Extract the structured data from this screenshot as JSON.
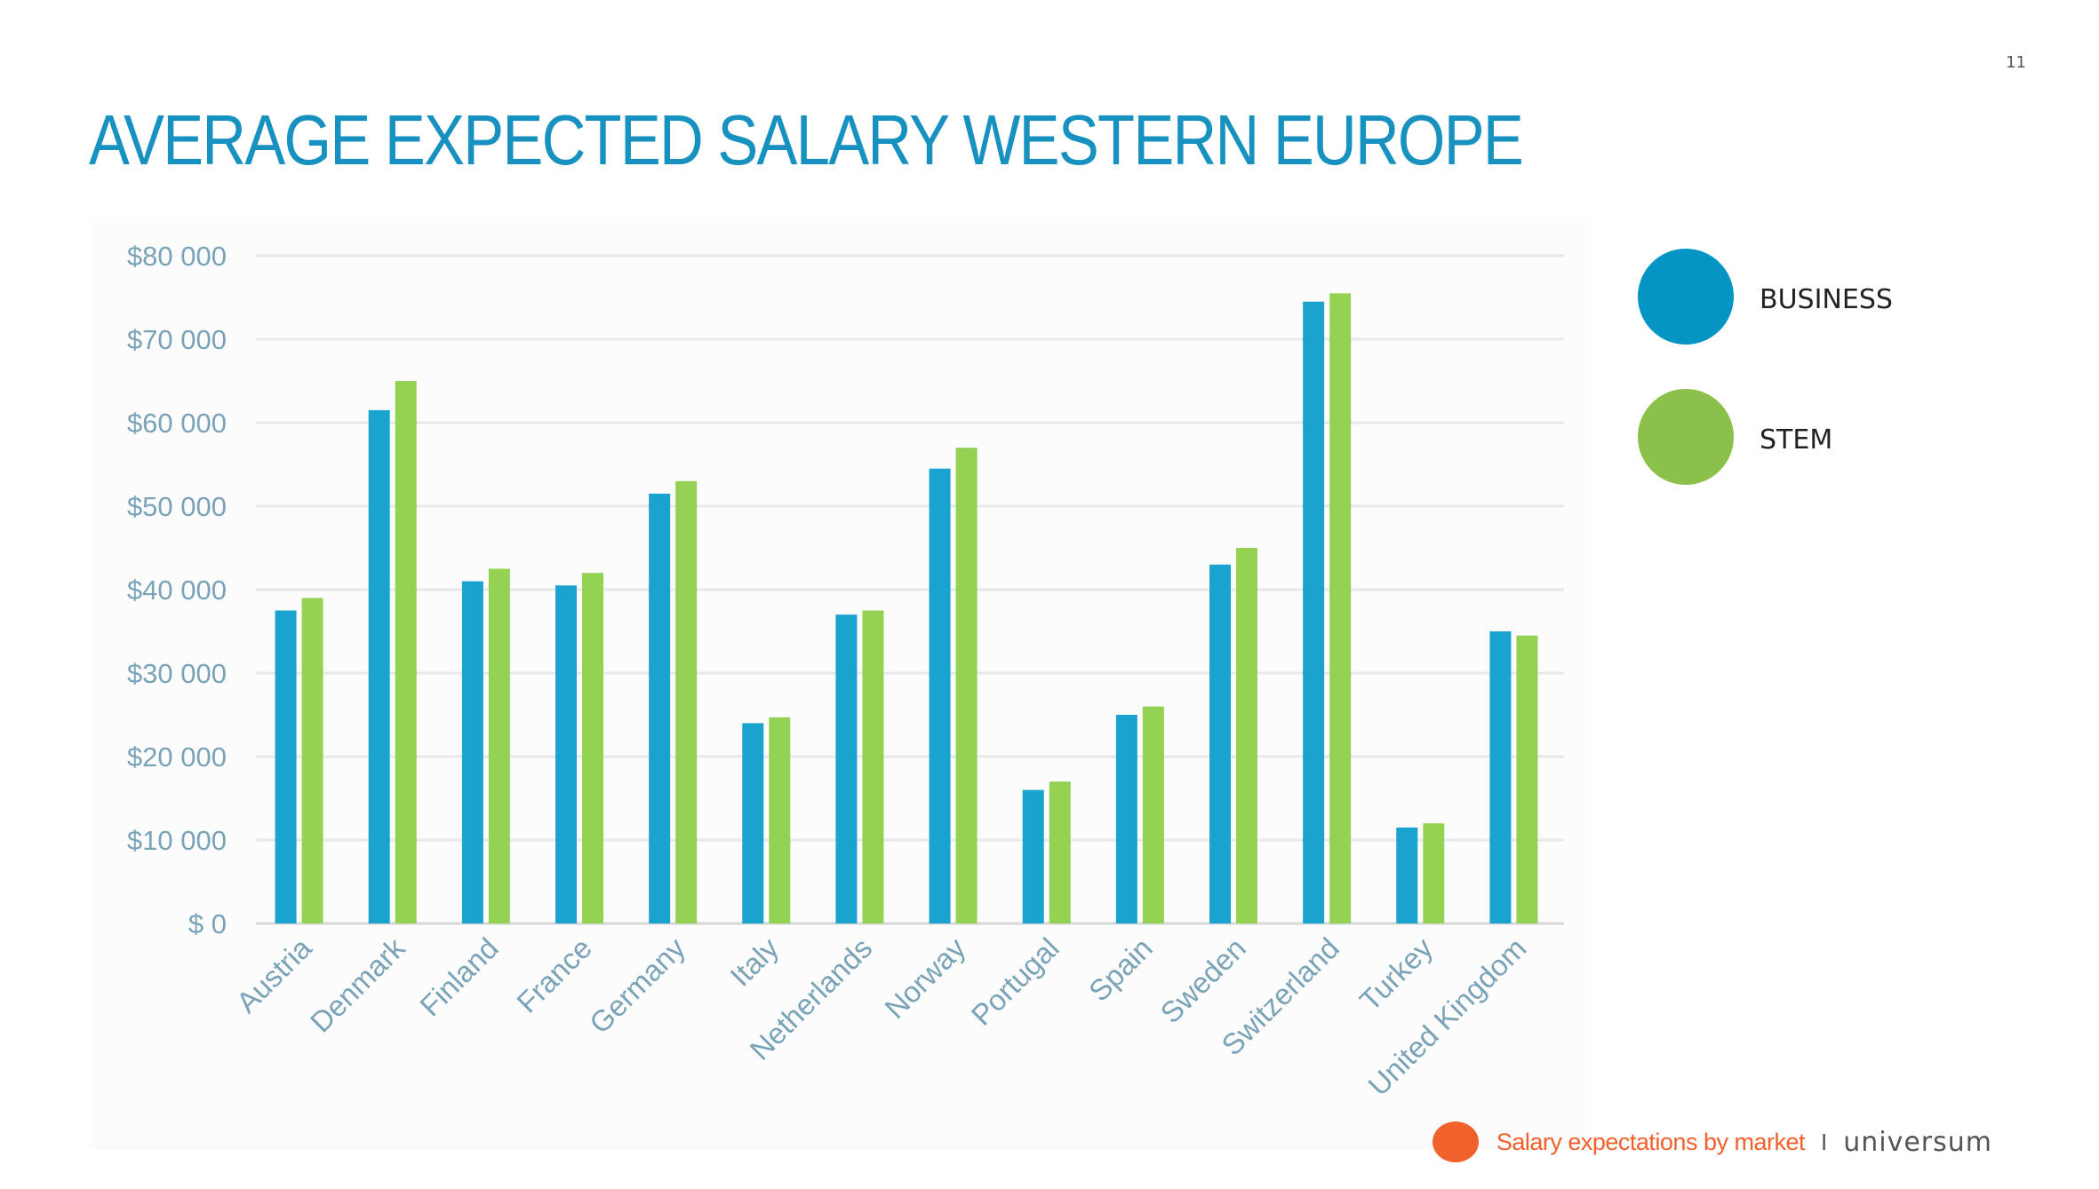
{
  "page": {
    "number": "11",
    "title": "AVERAGE EXPECTED SALARY WESTERN EUROPE"
  },
  "legend": [
    {
      "label": "BUSINESS",
      "color": "#0595c4"
    },
    {
      "label": "STEM",
      "color": "#8bc04a"
    }
  ],
  "footer": {
    "text": "Salary expectations by market",
    "separator": "I",
    "logo": "universum",
    "dot_color": "#f0612c"
  },
  "chart_data": {
    "type": "bar",
    "categories": [
      "Austria",
      "Denmark",
      "Finland",
      "France",
      "Germany",
      "Italy",
      "Netherlands",
      "Norway",
      "Portugal",
      "Spain",
      "Sweden",
      "Switzerland",
      "Turkey",
      "United Kingdom"
    ],
    "series": [
      {
        "name": "BUSINESS",
        "color": "#1aa3cf",
        "values": [
          37500,
          61500,
          41000,
          40500,
          51500,
          24000,
          37000,
          54500,
          16000,
          25000,
          43000,
          74500,
          11500,
          35000
        ]
      },
      {
        "name": "STEM",
        "color": "#94d254",
        "values": [
          39000,
          65000,
          42500,
          42000,
          53000,
          24700,
          37500,
          57000,
          17000,
          26000,
          45000,
          75500,
          12000,
          34500
        ]
      }
    ],
    "y_ticks": [
      "$ 0",
      "$10 000",
      "$20 000",
      "$30 000",
      "$40 000",
      "$50 000",
      "$60 000",
      "$70 000",
      "$80 000"
    ],
    "ylim": [
      0,
      80000
    ],
    "grid": true,
    "legend_position": "right"
  }
}
